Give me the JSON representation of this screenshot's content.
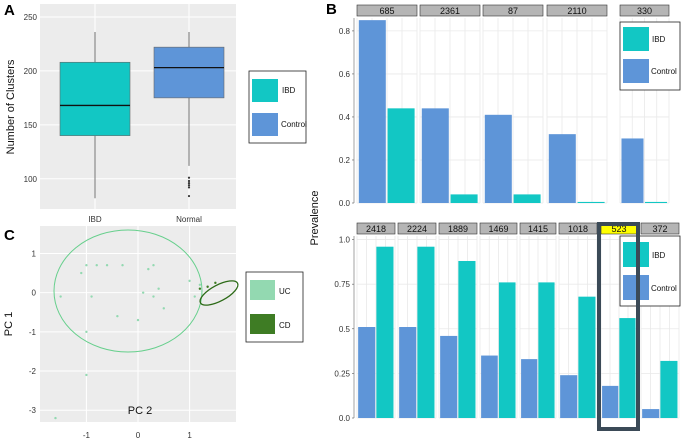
{
  "colors": {
    "ibd": "#12c7c4",
    "control": "#5e95d8",
    "uc": "#93d9b1",
    "cd": "#3e7c24",
    "panel_bg": "#ececec",
    "highlight_strip": "#ffff00",
    "highlight_box": "#3b4a57",
    "ellipse_uc": "#66cf8c",
    "ellipse_cd": "#2c6a17"
  },
  "chart_data": [
    {
      "panel": "A",
      "type": "box",
      "ylabel": "Number of Clusters",
      "categories": [
        "IBD",
        "Normal"
      ],
      "yticks": [
        100,
        150,
        200,
        250
      ],
      "ylim": [
        72,
        262
      ],
      "series": [
        {
          "name": "IBD",
          "min": 82,
          "q1": 140,
          "median": 168,
          "q3": 208,
          "max": 236,
          "outliers": []
        },
        {
          "name": "Normal",
          "min": 112,
          "q1": 175,
          "median": 203,
          "q3": 222,
          "max": 236,
          "outliers": [
            84,
            92,
            94,
            96,
            98,
            101
          ]
        }
      ],
      "legend": [
        "IBD",
        "Control"
      ]
    },
    {
      "panel": "B",
      "type": "bar",
      "ylabel": "Prevalence",
      "rows": [
        {
          "ylim": [
            0,
            0.86
          ],
          "yticks": [
            "0.0",
            "0.2",
            "0.4",
            "0.6",
            "0.8"
          ],
          "ytick_values": [
            0,
            0.2,
            0.4,
            0.6,
            0.8
          ],
          "categories": [
            "685",
            "2361",
            "87",
            "2110",
            "330"
          ],
          "series": [
            {
              "name": "Control",
              "values": [
                0.85,
                0.44,
                0.41,
                0.32,
                0.3
              ]
            },
            {
              "name": "IBD",
              "values": [
                0.44,
                0.04,
                0.04,
                0.005,
                0.005
              ]
            }
          ],
          "legend": [
            "IBD",
            "Control"
          ]
        },
        {
          "ylim": [
            0,
            1.02
          ],
          "yticks": [
            "0.0",
            "0.25",
            "0.5",
            "0.75",
            "1.0"
          ],
          "ytick_values": [
            0,
            0.25,
            0.5,
            0.75,
            1.0
          ],
          "categories": [
            "2418",
            "2224",
            "1889",
            "1469",
            "1415",
            "1018",
            "523",
            "372"
          ],
          "highlight": "523",
          "series": [
            {
              "name": "Control",
              "values": [
                0.51,
                0.51,
                0.46,
                0.35,
                0.33,
                0.24,
                0.18,
                0.05
              ]
            },
            {
              "name": "IBD",
              "values": [
                0.96,
                0.96,
                0.88,
                0.76,
                0.76,
                0.68,
                0.56,
                0.32
              ]
            }
          ],
          "legend": [
            "IBD",
            "Control"
          ]
        }
      ]
    },
    {
      "panel": "C",
      "type": "scatter",
      "xlabel": "PC 2",
      "ylabel": "PC 1",
      "xticks": [
        "-1",
        "0",
        "1"
      ],
      "xtick_values": [
        -1,
        0,
        1
      ],
      "yticks": [
        "1",
        "0",
        "-1",
        "-2",
        "-3"
      ],
      "ytick_values": [
        1,
        0,
        -1,
        -2,
        -3
      ],
      "xlim": [
        -1.9,
        1.9
      ],
      "ylim": [
        -3.3,
        1.7
      ],
      "series": [
        {
          "name": "UC",
          "points": [
            [
              -1.0,
              0.7
            ],
            [
              -0.8,
              0.7
            ],
            [
              -0.6,
              0.7
            ],
            [
              -1.1,
              0.5
            ],
            [
              -0.3,
              0.7
            ],
            [
              0.2,
              0.6
            ],
            [
              0.3,
              0.7
            ],
            [
              -1.5,
              -0.1
            ],
            [
              0.4,
              0.1
            ],
            [
              0.1,
              0.0
            ],
            [
              0.3,
              -0.1
            ],
            [
              -0.9,
              -0.1
            ],
            [
              0.5,
              -0.4
            ],
            [
              -0.4,
              -0.6
            ],
            [
              -1.0,
              -2.1
            ],
            [
              -1.6,
              -3.2
            ],
            [
              1.0,
              0.3
            ],
            [
              1.2,
              0.2
            ],
            [
              1.1,
              -0.1
            ],
            [
              -1.0,
              -1.0
            ],
            [
              0.0,
              -0.7
            ]
          ]
        },
        {
          "name": "CD",
          "points": [
            [
              1.2,
              0.1
            ],
            [
              1.35,
              0.15
            ],
            [
              1.5,
              0.25
            ]
          ]
        }
      ],
      "legend": [
        "UC",
        "CD"
      ]
    }
  ],
  "panel_labels": [
    "A",
    "B",
    "C"
  ]
}
